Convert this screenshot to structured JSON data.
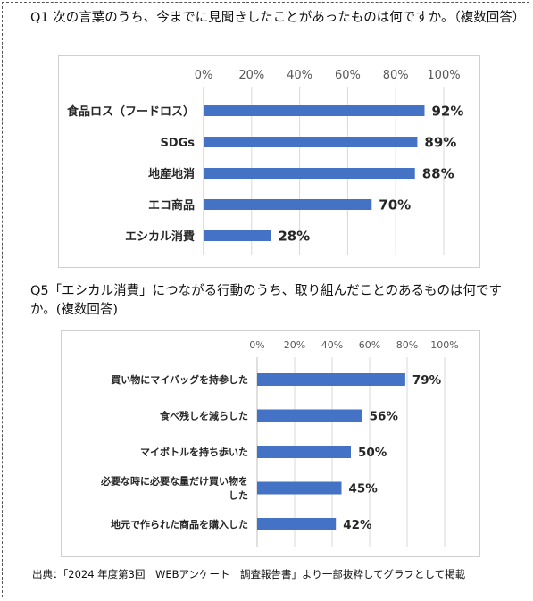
{
  "q1": {
    "title": "Q1 次の言葉のうち、今までに見聞きしたことがあったものは何ですか。（複数回答）"
  },
  "q5": {
    "title": "Q5「エシカル消費」につながる行動のうち、取り組んだことのあるものは何ですか。(複数回答)"
  },
  "source": "出典：「2024 年度第3回　WEBアンケート　調査報告書」より一部抜粋してグラフとして掲載",
  "chart_data": [
    {
      "type": "bar",
      "orientation": "horizontal",
      "categories": [
        "食品ロス（フードロス）",
        "SDGs",
        "地産地消",
        "エコ商品",
        "エシカル消費"
      ],
      "values": [
        92,
        89,
        88,
        70,
        28
      ],
      "value_labels": [
        "92%",
        "89%",
        "88%",
        "70%",
        "28%"
      ],
      "xlim": [
        0,
        100
      ],
      "xticks": [
        "0%",
        "20%",
        "40%",
        "60%",
        "80%",
        "100%"
      ],
      "grid": true,
      "bar_color": "#4472C4"
    },
    {
      "type": "bar",
      "orientation": "horizontal",
      "categories": [
        "買い物にマイバッグを持参した",
        "食べ残しを減らした",
        "マイボトルを持ち歩いた",
        "必要な時に必要な量だけ買い物をした",
        "地元で作られた商品を購入した"
      ],
      "category_lines": [
        [
          "買い物にマイバッグを持参した"
        ],
        [
          "食べ残しを減らした"
        ],
        [
          "マイボトルを持ち歩いた"
        ],
        [
          "必要な時に必要な量だけ買い物を",
          "した"
        ],
        [
          "地元で作られた商品を購入した"
        ]
      ],
      "values": [
        79,
        56,
        50,
        45,
        42
      ],
      "value_labels": [
        "79%",
        "56%",
        "50%",
        "45%",
        "42%"
      ],
      "xlim": [
        0,
        100
      ],
      "xticks": [
        "0%",
        "20%",
        "40%",
        "60%",
        "80%",
        "100%"
      ],
      "grid": true,
      "bar_color": "#4472C4"
    }
  ]
}
